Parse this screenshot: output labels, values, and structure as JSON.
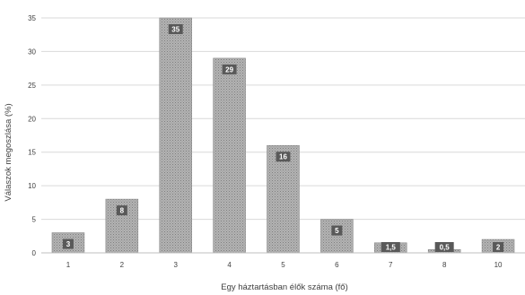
{
  "chart_data": {
    "type": "bar",
    "title": "",
    "xlabel": "Egy háztartásban élők száma (fő)",
    "ylabel": "Válaszok megoszlása (%)",
    "categories": [
      "1",
      "2",
      "3",
      "4",
      "5",
      "6",
      "7",
      "8",
      "10"
    ],
    "values": [
      3,
      8,
      35,
      29,
      16,
      5,
      1.5,
      0.5,
      2
    ],
    "data_labels": [
      "3",
      "8",
      "35",
      "29",
      "16",
      "5",
      "1,5",
      "0,5",
      "2"
    ],
    "ylim": [
      0,
      35
    ],
    "yticks": [
      0,
      5,
      10,
      15,
      20,
      25,
      30,
      35
    ],
    "grid": true,
    "legend": "none",
    "colors": {
      "bar": "#a6a6a6",
      "bar_border": "#8c8c8c",
      "label_bg": "#595959",
      "grid": "#d9d9d9",
      "text": "#404040"
    }
  }
}
